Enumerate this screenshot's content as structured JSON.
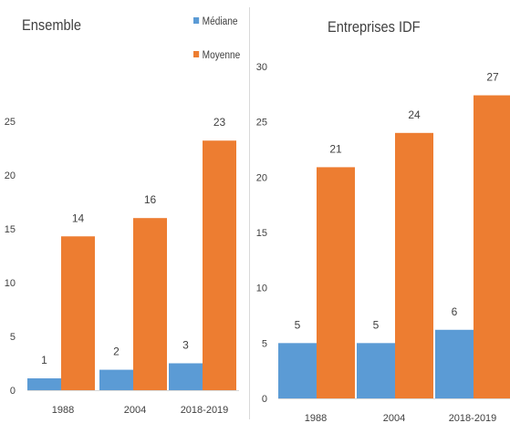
{
  "colors": {
    "mediane": "#5B9BD5",
    "moyenne": "#ED7D31",
    "text": "#404040",
    "divider": "#D9D9D9"
  },
  "legend": {
    "mediane": "Médiane",
    "moyenne": "Moyenne"
  },
  "chart_data": [
    {
      "type": "bar",
      "title": "Ensemble",
      "categories": [
        "1988",
        "2004",
        "2018-2019"
      ],
      "series": [
        {
          "name": "Médiane",
          "values": [
            1,
            2,
            3
          ],
          "labels": [
            "1",
            "2",
            "3"
          ],
          "plotted": [
            1.1,
            1.9,
            2.5
          ]
        },
        {
          "name": "Moyenne",
          "values": [
            14,
            16,
            23
          ],
          "labels": [
            "14",
            "16",
            "23"
          ],
          "plotted": [
            14.3,
            16.0,
            23.2
          ]
        }
      ],
      "ylim": [
        0,
        25
      ],
      "yticks": [
        0,
        5,
        10,
        15,
        20,
        25
      ],
      "grid": false,
      "legend": "top-right"
    },
    {
      "type": "bar",
      "title": "Entreprises IDF",
      "categories": [
        "1988",
        "2004",
        "2018-2019"
      ],
      "series": [
        {
          "name": "Médiane",
          "values": [
            5,
            5,
            6
          ],
          "labels": [
            "5",
            "5",
            "6"
          ],
          "plotted": [
            5.0,
            5.0,
            6.2
          ]
        },
        {
          "name": "Moyenne",
          "values": [
            21,
            24,
            27
          ],
          "labels": [
            "21",
            "24",
            "27"
          ],
          "plotted": [
            20.9,
            24.0,
            27.4
          ]
        }
      ],
      "ylim": [
        0,
        30
      ],
      "yticks": [
        0,
        5,
        10,
        15,
        20,
        25,
        30
      ],
      "grid": false
    }
  ]
}
